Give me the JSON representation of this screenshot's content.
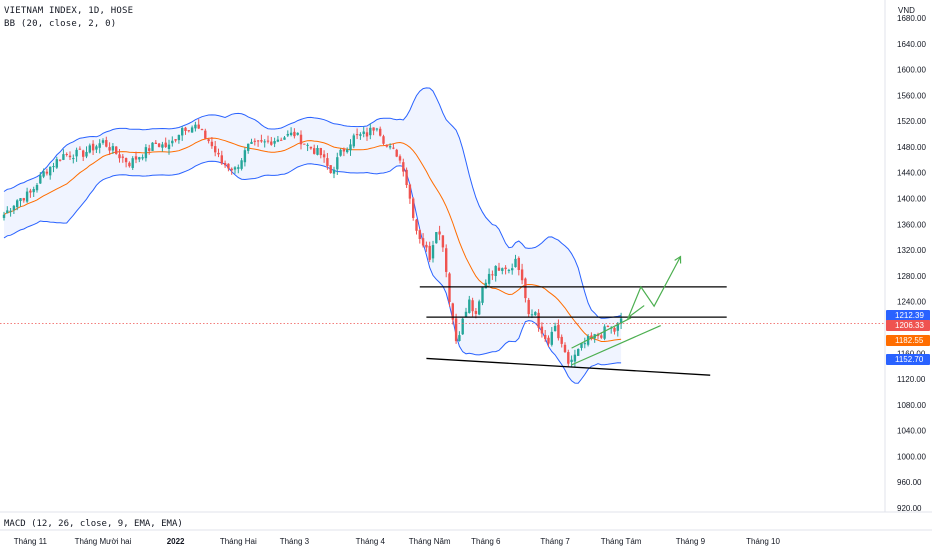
{
  "header": {
    "symbol_line": "VIETNAM INDEX, 1D, HOSE",
    "indicator_line": "BB (20, close, 2, 0)"
  },
  "footer": {
    "macd_label": "MACD (12, 26, close, 9, EMA, EMA)"
  },
  "colors": {
    "up": "#26a69a",
    "down": "#ef5350",
    "band": "#2962ff",
    "band_fill": "#2962ff",
    "basis": "#ff6d00",
    "drawing": "#4caf50",
    "level": "#000000"
  },
  "chart_data": {
    "type": "candlestick",
    "title": "VIETNAM INDEX, 1D, HOSE",
    "ylabel": "VND",
    "ylim": [
      920,
      1680
    ],
    "yticks": [
      1680,
      1640,
      1600,
      1560,
      1520,
      1480,
      1440,
      1400,
      1360,
      1320,
      1280,
      1240,
      1200,
      1160,
      1120,
      1080,
      1040,
      1000,
      960,
      920
    ],
    "x_labels": [
      {
        "label": "Tháng 11",
        "idx": 8
      },
      {
        "label": "Tháng Mười hai",
        "idx": 30
      },
      {
        "label": "2022",
        "idx": 52
      },
      {
        "label": "Tháng Hai",
        "idx": 71
      },
      {
        "label": "Tháng 3",
        "idx": 88
      },
      {
        "label": "Tháng 4",
        "idx": 111
      },
      {
        "label": "Tháng Năm",
        "idx": 129
      },
      {
        "label": "Tháng 6",
        "idx": 146
      },
      {
        "label": "Tháng 7",
        "idx": 167
      },
      {
        "label": "Tháng Tám",
        "idx": 187
      },
      {
        "label": "Tháng 9",
        "idx": 208
      },
      {
        "label": "Tháng 10",
        "idx": 230
      }
    ],
    "anchors": [
      [
        0,
        1375
      ],
      [
        4,
        1398
      ],
      [
        8,
        1408
      ],
      [
        12,
        1440
      ],
      [
        18,
        1468
      ],
      [
        24,
        1470
      ],
      [
        30,
        1488
      ],
      [
        34,
        1470
      ],
      [
        38,
        1455
      ],
      [
        42,
        1470
      ],
      [
        46,
        1485
      ],
      [
        50,
        1480
      ],
      [
        54,
        1510
      ],
      [
        58,
        1512
      ],
      [
        62,
        1490
      ],
      [
        66,
        1455
      ],
      [
        70,
        1445
      ],
      [
        74,
        1480
      ],
      [
        78,
        1485
      ],
      [
        84,
        1495
      ],
      [
        88,
        1500
      ],
      [
        92,
        1482
      ],
      [
        96,
        1468
      ],
      [
        99,
        1440
      ],
      [
        102,
        1470
      ],
      [
        106,
        1495
      ],
      [
        110,
        1500
      ],
      [
        113,
        1515
      ],
      [
        116,
        1480
      ],
      [
        119,
        1470
      ],
      [
        121,
        1448
      ],
      [
        123,
        1400
      ],
      [
        125,
        1352
      ],
      [
        127,
        1330
      ],
      [
        129,
        1310
      ],
      [
        131,
        1355
      ],
      [
        133,
        1330
      ],
      [
        135,
        1245
      ],
      [
        137,
        1180
      ],
      [
        139,
        1210
      ],
      [
        141,
        1240
      ],
      [
        143,
        1215
      ],
      [
        145,
        1260
      ],
      [
        147,
        1285
      ],
      [
        149,
        1290
      ],
      [
        151,
        1298
      ],
      [
        153,
        1292
      ],
      [
        155,
        1305
      ],
      [
        157,
        1275
      ],
      [
        159,
        1215
      ],
      [
        161,
        1225
      ],
      [
        163,
        1185
      ],
      [
        165,
        1175
      ],
      [
        167,
        1200
      ],
      [
        169,
        1168
      ],
      [
        171,
        1145
      ],
      [
        173,
        1155
      ],
      [
        175,
        1170
      ],
      [
        177,
        1180
      ],
      [
        179,
        1185
      ],
      [
        181,
        1190
      ],
      [
        183,
        1200
      ],
      [
        185,
        1195
      ],
      [
        187,
        1210
      ]
    ],
    "bb": {
      "length": 20,
      "source": "close",
      "mult": 2,
      "offset": 0
    },
    "levels": [
      {
        "name": "resistance-upper",
        "y": 1263,
        "idx_from": 126,
        "idx_to": 219
      },
      {
        "name": "resistance-lower",
        "y": 1216,
        "idx_from": 128,
        "idx_to": 219
      }
    ],
    "support_line": {
      "from": [
        128,
        1152
      ],
      "to": [
        214,
        1126
      ]
    },
    "projection": {
      "channel_low": [
        [
          172,
          1142
        ],
        [
          199,
          1203
        ]
      ],
      "channel_high": [
        [
          172,
          1168
        ],
        [
          190,
          1215
        ]
      ],
      "path": [
        [
          189,
          1213
        ],
        [
          193,
          1263
        ],
        [
          197,
          1233
        ],
        [
          205,
          1310
        ]
      ],
      "secondary": [
        [
          189,
          1215
        ],
        [
          194,
          1234
        ]
      ]
    },
    "price_badges": [
      {
        "value": "1212.39",
        "color": "#2962ff"
      },
      {
        "value": "1206.33",
        "color": "#ef5350"
      },
      {
        "value": "1182.55",
        "color": "#ff6d00"
      },
      {
        "value": "1152.70",
        "color": "#2962ff"
      }
    ],
    "current_price": 1206.33
  }
}
